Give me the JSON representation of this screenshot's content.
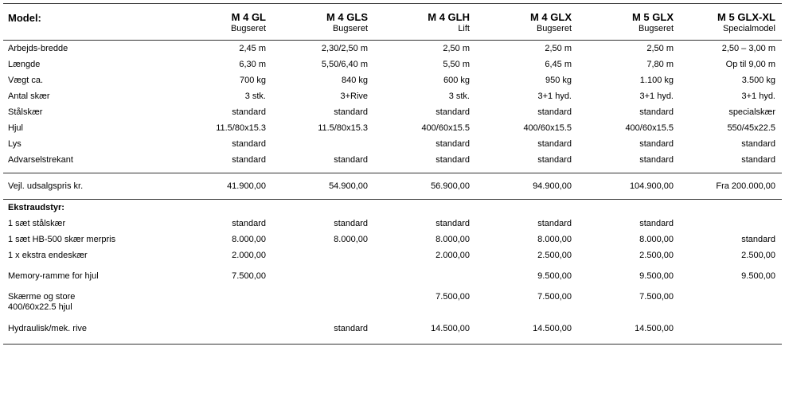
{
  "header": {
    "label": "Model:",
    "models": [
      {
        "name": "M 4 GL",
        "sub": "Bugseret"
      },
      {
        "name": "M 4 GLS",
        "sub": "Bugseret"
      },
      {
        "name": "M 4 GLH",
        "sub": "Lift"
      },
      {
        "name": "M 4 GLX",
        "sub": "Bugseret"
      },
      {
        "name": "M 5 GLX",
        "sub": "Bugseret"
      },
      {
        "name": "M 5 GLX-XL",
        "sub": "Specialmodel"
      }
    ]
  },
  "specs": [
    {
      "label": "Arbejds-bredde",
      "values": [
        "2,45 m",
        "2,30/2,50 m",
        "2,50 m",
        "2,50 m",
        "2,50 m",
        "2,50 – 3,00 m"
      ]
    },
    {
      "label": "Længde",
      "values": [
        "6,30 m",
        "5,50/6,40 m",
        "5,50 m",
        "6,45 m",
        "7,80 m",
        "Op til 9,00 m"
      ]
    },
    {
      "label": "Vægt ca.",
      "values": [
        "700 kg",
        "840 kg",
        "600 kg",
        "950 kg",
        "1.100 kg",
        "3.500 kg"
      ]
    },
    {
      "label": "Antal skær",
      "values": [
        "3 stk.",
        "3+Rive",
        "3 stk.",
        "3+1 hyd.",
        "3+1 hyd.",
        "3+1 hyd."
      ]
    },
    {
      "label": "Stålskær",
      "values": [
        "standard",
        "standard",
        "standard",
        "standard",
        "standard",
        "specialskær"
      ]
    },
    {
      "label": "Hjul",
      "values": [
        "11.5/80x15.3",
        "11.5/80x15.3",
        "400/60x15.5",
        "400/60x15.5",
        "400/60x15.5",
        "550/45x22.5"
      ]
    },
    {
      "label": "Lys",
      "values": [
        "standard",
        "",
        "standard",
        "standard",
        "standard",
        "standard"
      ]
    },
    {
      "label": "Advarselstrekant",
      "values": [
        "standard",
        "standard",
        "standard",
        "standard",
        "standard",
        "standard"
      ]
    }
  ],
  "price": {
    "label": "Vejl. udsalgspris kr.",
    "values": [
      "41.900,00",
      "54.900,00",
      "56.900,00",
      "94.900,00",
      "104.900,00",
      "Fra 200.000,00"
    ]
  },
  "extras": {
    "heading": "Ekstraudstyr:",
    "rows": [
      {
        "label": "1 sæt stålskær",
        "values": [
          "standard",
          "standard",
          "standard",
          "standard",
          "standard",
          ""
        ]
      },
      {
        "label": "1 sæt HB-500 skær merpris",
        "values": [
          "8.000,00",
          "8.000,00",
          "8.000,00",
          "8.000,00",
          "8.000,00",
          "standard"
        ]
      },
      {
        "label": "1 x ekstra endeskær",
        "values": [
          "2.000,00",
          "",
          "2.000,00",
          "2.500,00",
          "2.500,00",
          "2.500,00"
        ]
      },
      {
        "label": "Memory-ramme for hjul",
        "values": [
          "7.500,00",
          "",
          "",
          "9.500,00",
          "9.500,00",
          "9.500,00"
        ]
      },
      {
        "label": "Skærme og store\n400/60x22.5 hjul",
        "values": [
          "",
          "",
          "7.500,00",
          "7.500,00",
          "7.500,00",
          ""
        ]
      },
      {
        "label": "Hydraulisk/mek. rive",
        "values": [
          "",
          "standard",
          "14.500,00",
          "14.500,00",
          "14.500,00",
          ""
        ]
      }
    ]
  }
}
